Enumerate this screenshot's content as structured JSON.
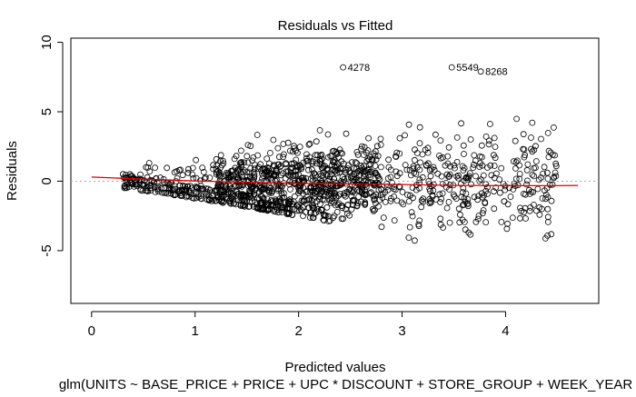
{
  "chart_data": {
    "type": "scatter",
    "title": "Residuals vs Fitted",
    "xlabel": "Predicted values",
    "ylabel": "Residuals",
    "subtitle": "glm(UNITS ~ BASE_PRICE + PRICE + UPC * DISCOUNT + STORE_GROUP + WEEK_YEAR +",
    "xlim": [
      -0.2,
      4.9
    ],
    "ylim": [
      -8.8,
      10.3
    ],
    "x_ticks": [
      0,
      1,
      2,
      3,
      4
    ],
    "x_tick_labels": [
      "0",
      "1",
      "2",
      "3",
      "4"
    ],
    "y_ticks": [
      -5,
      0,
      5,
      10
    ],
    "y_tick_labels": [
      "-5",
      "0",
      "5",
      "10"
    ],
    "reference_line_y": 0,
    "smooth_line": {
      "color": "#e00000",
      "x": [
        0.0,
        0.5,
        1.0,
        1.5,
        2.0,
        2.5,
        3.0,
        3.5,
        4.0,
        4.5,
        4.7
      ],
      "y": [
        0.3,
        0.15,
        0.02,
        -0.08,
        -0.15,
        -0.2,
        -0.24,
        -0.3,
        -0.32,
        -0.32,
        -0.3
      ]
    },
    "labeled_points": [
      {
        "label": "4278",
        "x": 2.43,
        "y": 8.2
      },
      {
        "label": "5549",
        "x": 3.48,
        "y": 8.2
      },
      {
        "label": "8268",
        "x": 3.76,
        "y": 7.9
      }
    ],
    "n_points": 1400,
    "grid": false,
    "legend": "none"
  }
}
